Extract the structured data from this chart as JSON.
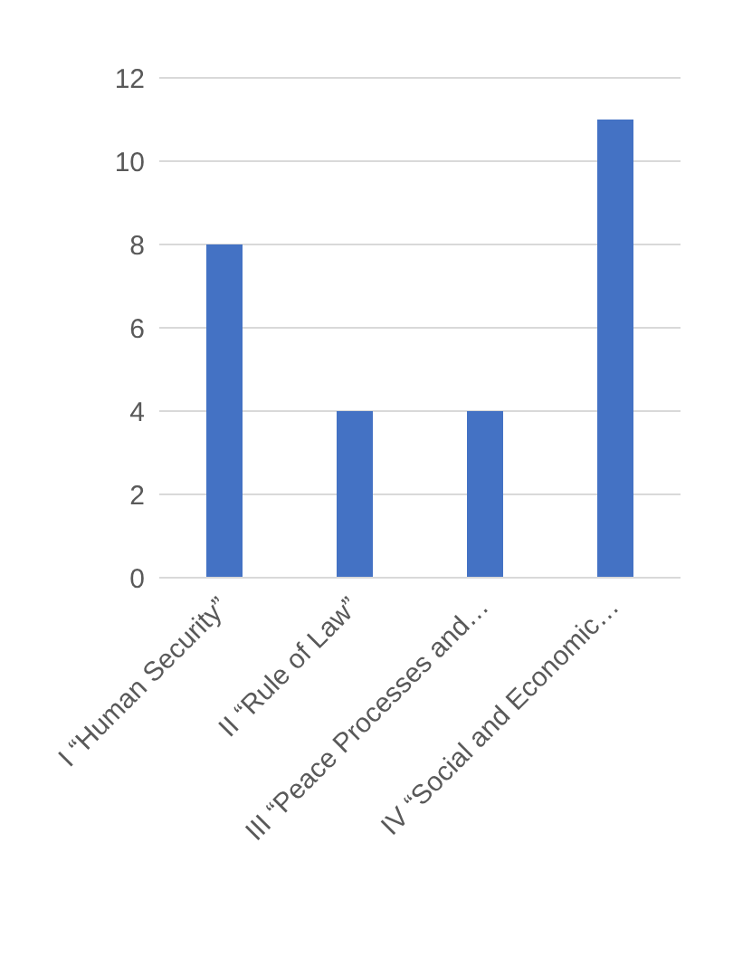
{
  "chart_data": {
    "type": "bar",
    "categories": [
      "I “Human Security”",
      "II “Rule of Law”",
      "III “Peace Processes and…",
      "IV “Social and Economic…"
    ],
    "values": [
      8,
      4,
      4,
      11
    ],
    "color": "#4472c4",
    "ylim": [
      0,
      12
    ],
    "yticks": [
      0,
      2,
      4,
      6,
      8,
      10,
      12
    ],
    "grid": "y",
    "legend": false
  }
}
